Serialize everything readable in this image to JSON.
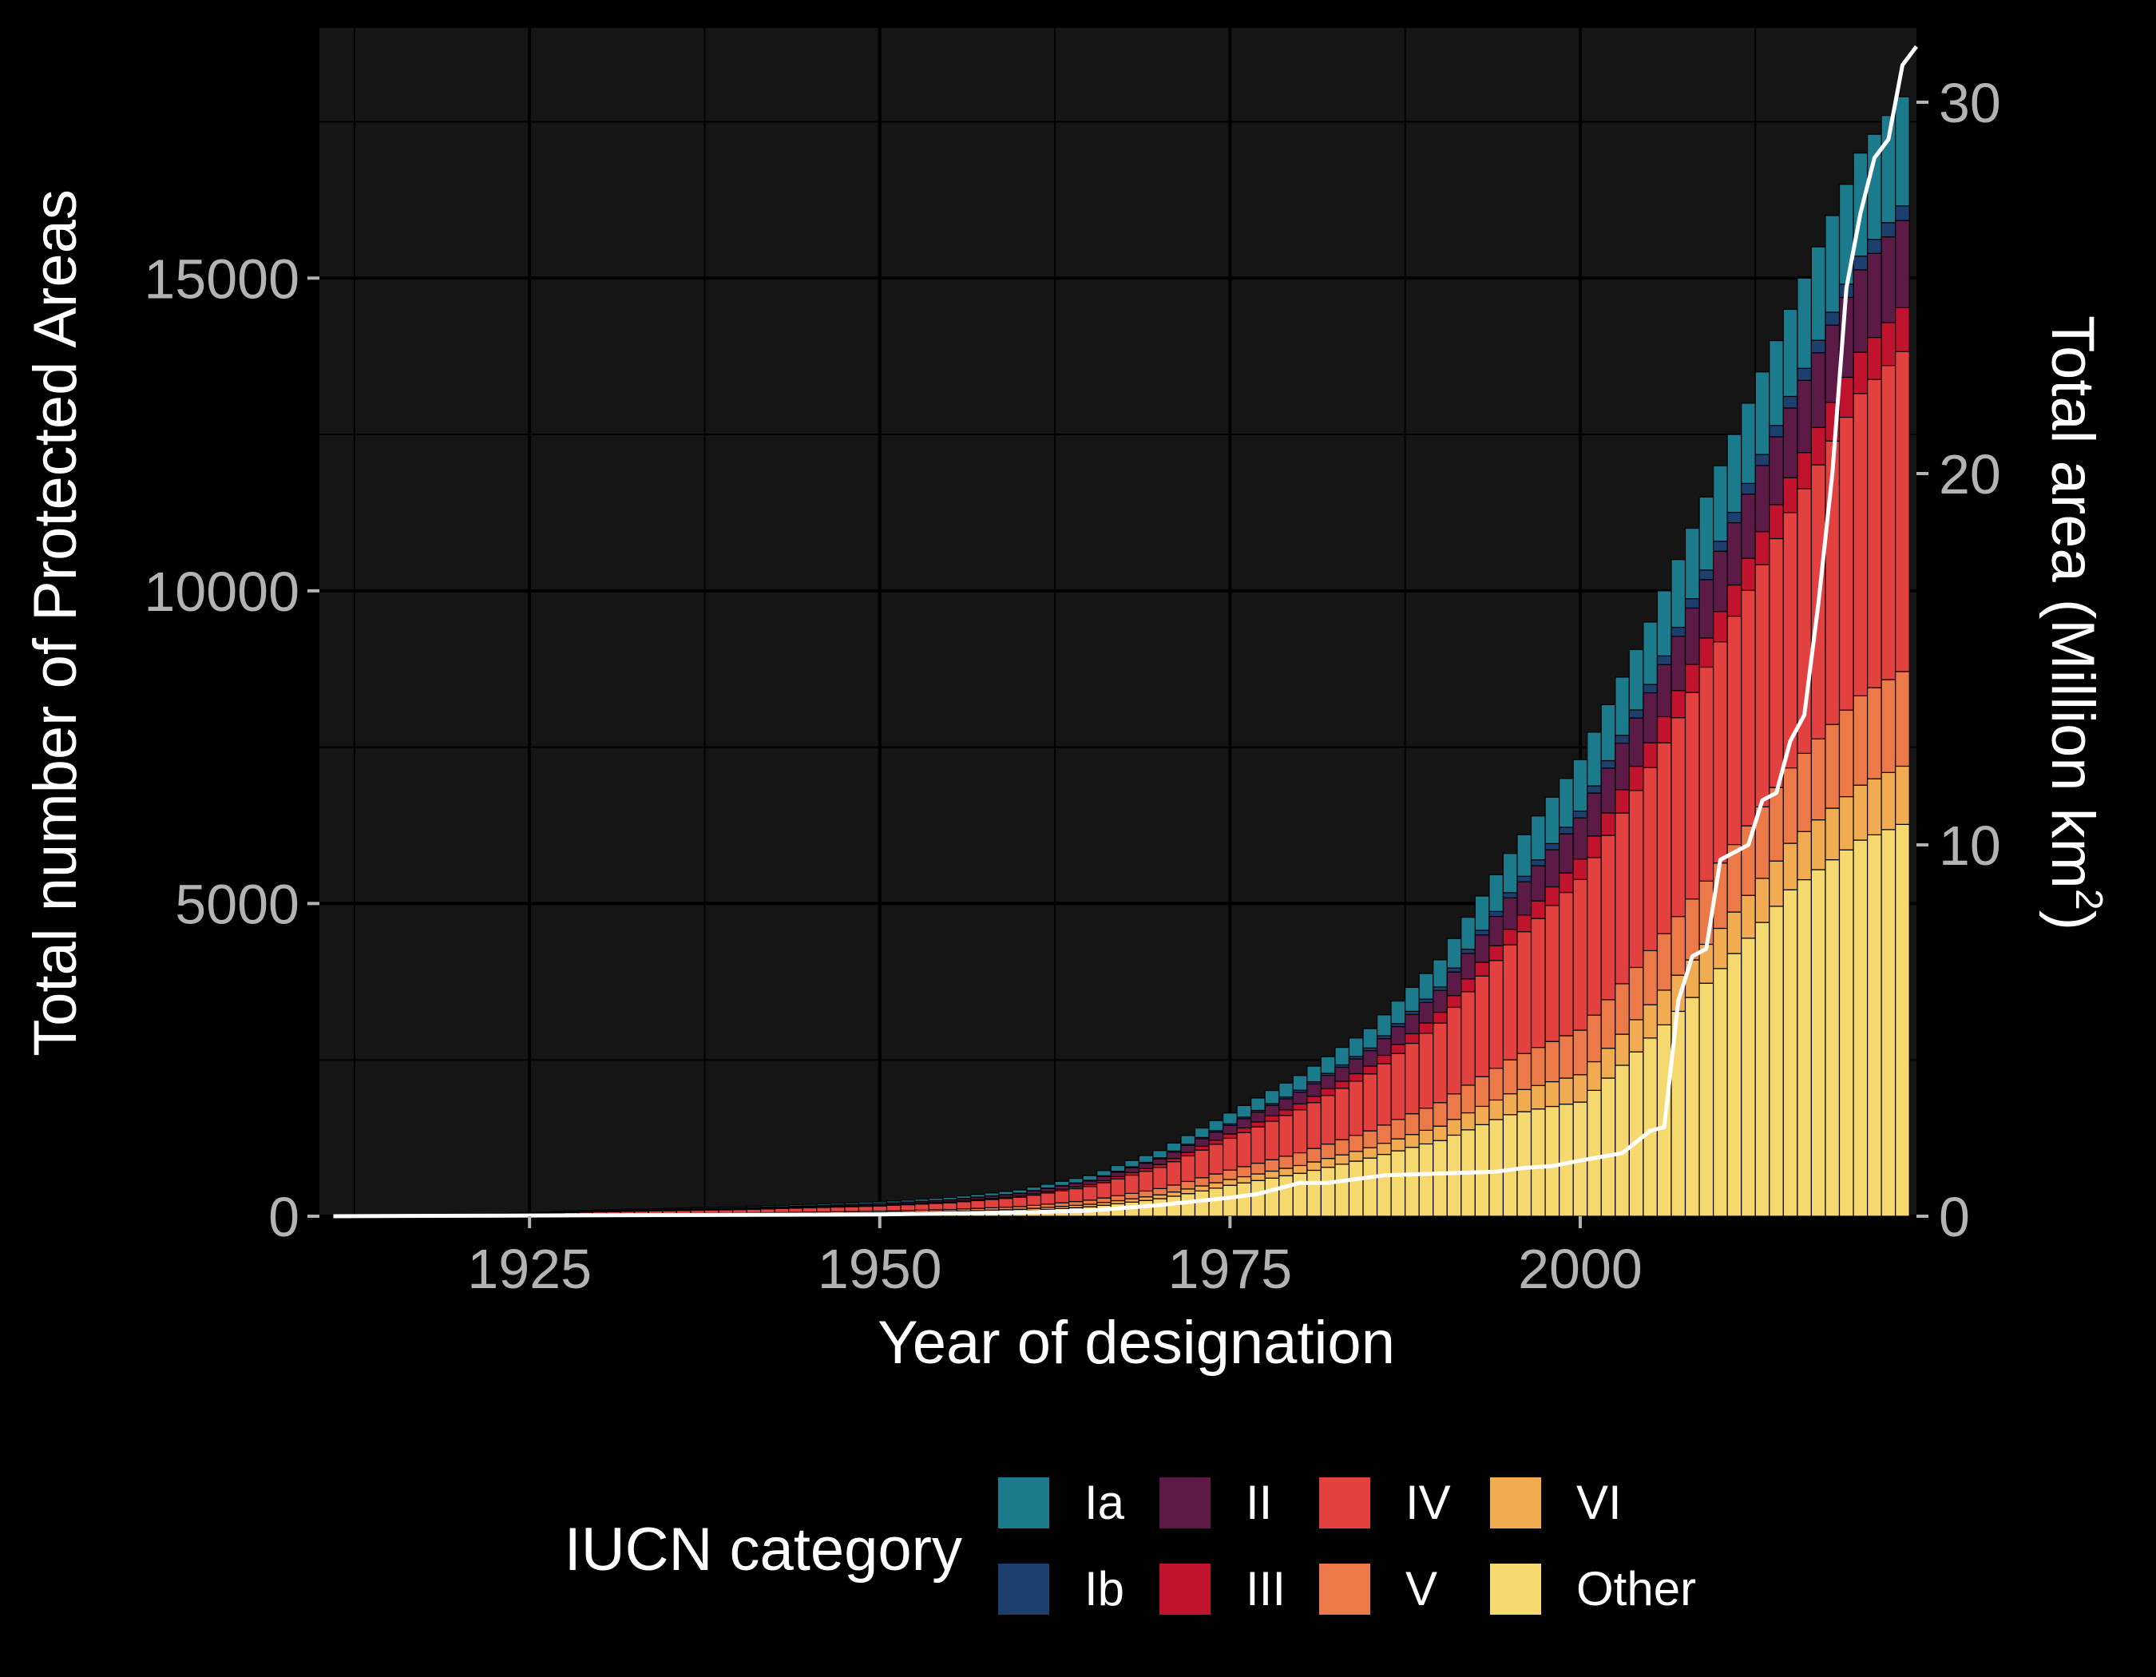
{
  "chart_data": {
    "type": "bar",
    "stacked": true,
    "xlabel": "Year of designation",
    "ylabel": "Total number of Protected Areas",
    "y2label": "Total area (Million km",
    "y2label_sup": "2",
    "y2label_end": ")",
    "xlim": [
      1910,
      2024
    ],
    "ylim": [
      0,
      19000
    ],
    "y2lim": [
      0,
      32
    ],
    "x_ticks": [
      1925,
      1950,
      1975,
      2000
    ],
    "y_ticks": [
      0,
      5000,
      10000,
      15000
    ],
    "y2_ticks": [
      0,
      10,
      20,
      30
    ],
    "grid": true,
    "legend": {
      "title": "IUCN category",
      "position": "bottom",
      "items": [
        {
          "label": "Ia",
          "color": "#1b7a8c"
        },
        {
          "label": "Ib",
          "color": "#1d3f6e"
        },
        {
          "label": "II",
          "color": "#5c1a47"
        },
        {
          "label": "III",
          "color": "#c2132e"
        },
        {
          "label": "IV",
          "color": "#e34040"
        },
        {
          "label": "V",
          "color": "#ec7a48"
        },
        {
          "label": "VI",
          "color": "#f1ab51"
        },
        {
          "label": "Other",
          "color": "#f5d86e"
        }
      ]
    },
    "stack_order_bottom_to_top": [
      "Other",
      "VI",
      "V",
      "IV",
      "III",
      "II",
      "Ib",
      "Ia"
    ],
    "years_start": 1911,
    "years_end": 2023,
    "totals_anchors": [
      [
        1911,
        0
      ],
      [
        1920,
        20
      ],
      [
        1925,
        60
      ],
      [
        1930,
        100
      ],
      [
        1940,
        150
      ],
      [
        1950,
        230
      ],
      [
        1955,
        300
      ],
      [
        1960,
        420
      ],
      [
        1965,
        650
      ],
      [
        1970,
        1050
      ],
      [
        1975,
        1650
      ],
      [
        1980,
        2250
      ],
      [
        1985,
        3000
      ],
      [
        1990,
        4100
      ],
      [
        1995,
        5800
      ],
      [
        2000,
        7300
      ],
      [
        2005,
        9500
      ],
      [
        2010,
        12000
      ],
      [
        2015,
        14500
      ],
      [
        2020,
        17000
      ],
      [
        2023,
        17900
      ]
    ],
    "other_share_anchors": [
      [
        1911,
        0.1
      ],
      [
        1960,
        0.2
      ],
      [
        1975,
        0.3
      ],
      [
        1985,
        0.31
      ],
      [
        1995,
        0.28
      ],
      [
        2000,
        0.25
      ],
      [
        2005,
        0.3
      ],
      [
        2010,
        0.33
      ],
      [
        2015,
        0.36
      ],
      [
        2023,
        0.35
      ]
    ],
    "share_ratios_non_other": {
      "VI": 0.08,
      "V": 0.13,
      "IV": 0.44,
      "III": 0.06,
      "II": 0.12,
      "Ib": 0.02,
      "Ia": 0.15
    },
    "area_series": {
      "name": "Total area",
      "color": "#ffffff",
      "points": [
        [
          1911,
          0
        ],
        [
          1925,
          0.02
        ],
        [
          1950,
          0.05
        ],
        [
          1960,
          0.1
        ],
        [
          1965,
          0.15
        ],
        [
          1970,
          0.3
        ],
        [
          1975,
          0.5
        ],
        [
          1977,
          0.6
        ],
        [
          1980,
          0.9
        ],
        [
          1982,
          0.9
        ],
        [
          1984,
          1.0
        ],
        [
          1986,
          1.1
        ],
        [
          1990,
          1.15
        ],
        [
          1994,
          1.2
        ],
        [
          1996,
          1.3
        ],
        [
          1998,
          1.35
        ],
        [
          2000,
          1.5
        ],
        [
          2003,
          1.7
        ],
        [
          2005,
          2.3
        ],
        [
          2006,
          2.4
        ],
        [
          2007,
          5.8
        ],
        [
          2008,
          7.0
        ],
        [
          2009,
          7.2
        ],
        [
          2010,
          9.6
        ],
        [
          2012,
          10.0
        ],
        [
          2013,
          11.2
        ],
        [
          2014,
          11.4
        ],
        [
          2015,
          12.8
        ],
        [
          2016,
          13.5
        ],
        [
          2017,
          16.5
        ],
        [
          2018,
          20.0
        ],
        [
          2019,
          25.0
        ],
        [
          2020,
          27.0
        ],
        [
          2021,
          28.5
        ],
        [
          2022,
          29.0
        ],
        [
          2023,
          31.0
        ],
        [
          2024,
          31.5
        ]
      ]
    }
  }
}
